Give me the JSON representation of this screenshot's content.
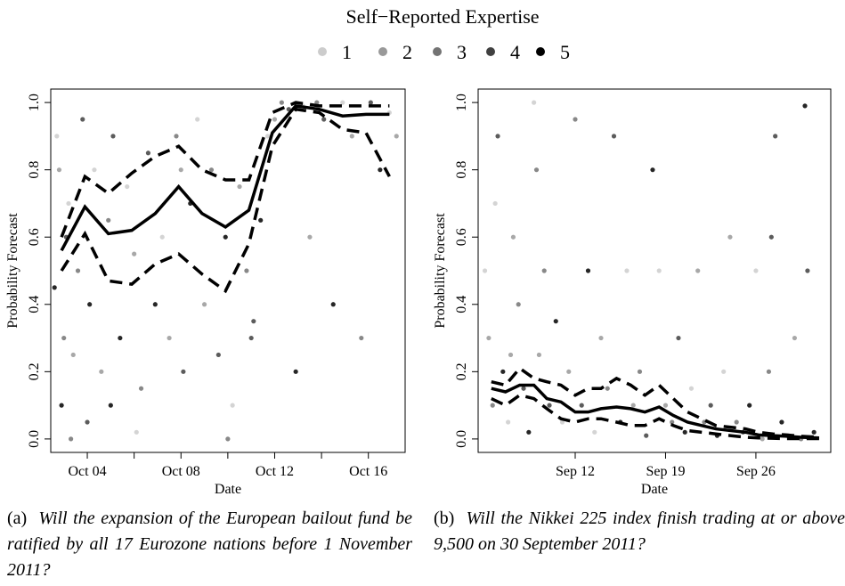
{
  "legend": {
    "title": "Self−Reported Expertise",
    "levels": [
      1,
      2,
      3,
      4,
      5
    ],
    "colors": [
      "#cccccc",
      "#999999",
      "#737373",
      "#404040",
      "#000000"
    ]
  },
  "chart_data": [
    {
      "type": "scatter-line",
      "label": "(a)",
      "caption": "Will the expansion of the European bailout fund be ratified by all 17 Eurozone nations before 1 November 2011?",
      "xlabel": "Date",
      "ylabel": "Probability Forecast",
      "xlim": [
        2.44,
        17.57
      ],
      "ylim": [
        -0.04,
        1.04
      ],
      "xticks": [
        {
          "value": 4,
          "label": "Oct 04"
        },
        {
          "value": 8,
          "label": "Oct 08"
        },
        {
          "value": 12,
          "label": "Oct 12"
        },
        {
          "value": 16,
          "label": "Oct 16"
        }
      ],
      "xminorticks": [
        6,
        10,
        14
      ],
      "yticks": [
        {
          "value": 0,
          "label": "0.0"
        },
        0.2,
        0.4,
        0.6,
        0.8,
        {
          "value": 1,
          "label": "1.0"
        }
      ],
      "points": {
        "x": [
          2.7,
          2.8,
          3.0,
          3.1,
          2.9,
          3.2,
          3.4,
          3.6,
          3.8,
          4.1,
          4.3,
          4.6,
          4.9,
          5.1,
          5.4,
          5.7,
          6.0,
          6.3,
          6.6,
          6.9,
          7.2,
          7.5,
          7.8,
          8.1,
          8.4,
          8.7,
          9.0,
          9.3,
          9.6,
          9.9,
          10.2,
          10.5,
          10.8,
          11.1,
          11.4,
          11.7,
          12.0,
          12.3,
          12.6,
          12.9,
          13.2,
          13.5,
          13.8,
          14.1,
          14.5,
          14.9,
          15.3,
          15.7,
          16.1,
          16.5,
          16.9,
          17.2,
          3.3,
          4.0,
          5.0,
          6.1,
          8.0,
          10.0,
          11.0,
          2.6
        ],
        "y": [
          0.9,
          0.8,
          0.3,
          0.6,
          0.1,
          0.7,
          0.25,
          0.5,
          0.95,
          0.4,
          0.8,
          0.2,
          0.65,
          0.9,
          0.3,
          0.75,
          0.55,
          0.15,
          0.85,
          0.4,
          0.6,
          0.3,
          0.9,
          0.2,
          0.7,
          0.95,
          0.4,
          0.8,
          0.25,
          0.6,
          0.1,
          0.75,
          0.5,
          0.35,
          0.65,
          0.9,
          0.95,
          1.0,
          0.98,
          0.2,
          0.99,
          0.6,
          1.0,
          0.95,
          0.4,
          1.0,
          0.9,
          0.3,
          1.0,
          0.8,
          0.97,
          0.9,
          0.0,
          0.05,
          0.1,
          0.02,
          0.8,
          0.0,
          0.3,
          0.45
        ],
        "expertise": [
          1,
          2,
          3,
          4,
          5,
          1,
          2,
          3,
          4,
          5,
          1,
          2,
          3,
          4,
          5,
          1,
          2,
          3,
          4,
          5,
          1,
          2,
          3,
          4,
          5,
          1,
          2,
          3,
          4,
          5,
          1,
          2,
          3,
          4,
          5,
          1,
          2,
          3,
          4,
          5,
          1,
          2,
          3,
          4,
          5,
          1,
          2,
          3,
          4,
          5,
          1,
          2,
          3,
          4,
          5,
          1,
          2,
          3,
          4,
          5
        ]
      },
      "line_x": [
        2.9,
        3.9,
        4.9,
        5.9,
        6.9,
        7.9,
        8.9,
        9.9,
        10.9,
        11.9,
        12.9,
        13.9,
        14.9,
        15.9,
        16.9
      ],
      "series": [
        {
          "style": "solid",
          "color": "#000000",
          "values": [
            0.56,
            0.69,
            0.61,
            0.62,
            0.67,
            0.75,
            0.67,
            0.63,
            0.68,
            0.91,
            0.99,
            0.98,
            0.96,
            0.965,
            0.965
          ]
        },
        {
          "style": "dashed",
          "color": "#000000",
          "values": [
            0.6,
            0.78,
            0.73,
            0.79,
            0.84,
            0.87,
            0.8,
            0.77,
            0.77,
            0.97,
            1.0,
            0.99,
            0.99,
            0.99,
            0.99
          ]
        },
        {
          "style": "dashed",
          "color": "#000000",
          "values": [
            0.5,
            0.61,
            0.47,
            0.46,
            0.52,
            0.55,
            0.49,
            0.44,
            0.58,
            0.87,
            0.98,
            0.97,
            0.92,
            0.91,
            0.78
          ]
        }
      ]
    },
    {
      "type": "scatter-line",
      "label": "(b)",
      "caption": "Will the Nikkei 225 index finish trading at or above 9,500 on 30 September 2011?",
      "xlabel": "Date",
      "ylabel": "Probability Forecast",
      "xlim": [
        4.48,
        31.8
      ],
      "ylim": [
        -0.04,
        1.04
      ],
      "xticks": [
        {
          "value": 12,
          "label": "Sep 12"
        },
        {
          "value": 19,
          "label": "Sep 19"
        },
        {
          "value": 26,
          "label": "Sep 26"
        }
      ],
      "xminorticks": [],
      "yticks": [
        {
          "value": 0,
          "label": "0.0"
        },
        0.2,
        0.4,
        0.6,
        0.8,
        {
          "value": 1,
          "label": "1.0"
        }
      ],
      "points": {
        "x": [
          5.0,
          5.3,
          5.6,
          6.0,
          6.4,
          6.8,
          7.2,
          7.6,
          8.0,
          8.4,
          8.8,
          9.2,
          9.6,
          10.0,
          10.5,
          11.0,
          11.5,
          12.0,
          12.5,
          13.0,
          13.5,
          14.0,
          14.5,
          15.0,
          15.5,
          16.0,
          16.5,
          17.0,
          17.5,
          18.0,
          18.5,
          19.0,
          19.5,
          20.0,
          20.5,
          21.0,
          21.5,
          22.0,
          22.5,
          23.0,
          23.5,
          24.0,
          24.5,
          25.0,
          25.5,
          26.0,
          26.5,
          27.0,
          27.5,
          28.0,
          28.5,
          29.0,
          29.5,
          30.0,
          30.5,
          5.8,
          7.0,
          9.0,
          27.2,
          29.8
        ],
        "y": [
          0.5,
          0.3,
          0.1,
          0.9,
          0.2,
          0.05,
          0.6,
          0.4,
          0.15,
          0.02,
          1.0,
          0.25,
          0.5,
          0.1,
          0.35,
          0.05,
          0.2,
          0.95,
          0.1,
          0.5,
          0.02,
          0.3,
          0.15,
          0.9,
          0.05,
          0.5,
          0.1,
          0.2,
          0.01,
          0.8,
          0.5,
          0.1,
          0.05,
          0.3,
          0.02,
          0.15,
          0.5,
          0.05,
          0.1,
          0.01,
          0.2,
          0.6,
          0.05,
          0.02,
          0.1,
          0.5,
          0.0,
          0.2,
          0.9,
          0.05,
          0.01,
          0.3,
          0.0,
          0.5,
          0.02,
          0.7,
          0.25,
          0.8,
          0.6,
          0.99
        ],
        "expertise": [
          1,
          2,
          3,
          4,
          5,
          1,
          2,
          3,
          4,
          5,
          1,
          2,
          3,
          4,
          5,
          1,
          2,
          3,
          4,
          5,
          1,
          2,
          3,
          4,
          5,
          1,
          2,
          3,
          4,
          5,
          1,
          2,
          3,
          4,
          5,
          1,
          2,
          3,
          4,
          5,
          1,
          2,
          3,
          4,
          5,
          1,
          2,
          3,
          4,
          5,
          1,
          2,
          3,
          4,
          5,
          1,
          2,
          3,
          4,
          5
        ]
      },
      "line_x": [
        5.5,
        6.6,
        7.7,
        8.8,
        9.8,
        10.9,
        12.0,
        13.0,
        14.0,
        15.2,
        16.3,
        17.4,
        18.5,
        19.6,
        20.7,
        21.8,
        22.9,
        24.0,
        25.2,
        26.2,
        27.3,
        28.4,
        29.5,
        30.9
      ],
      "series": [
        {
          "style": "solid",
          "color": "#000000",
          "values": [
            0.15,
            0.14,
            0.16,
            0.16,
            0.12,
            0.11,
            0.08,
            0.08,
            0.09,
            0.095,
            0.09,
            0.08,
            0.095,
            0.07,
            0.05,
            0.04,
            0.03,
            0.025,
            0.02,
            0.012,
            0.01,
            0.008,
            0.005,
            0.003
          ]
        },
        {
          "style": "dashed",
          "color": "#000000",
          "values": [
            0.17,
            0.16,
            0.21,
            0.18,
            0.17,
            0.16,
            0.13,
            0.15,
            0.15,
            0.18,
            0.16,
            0.13,
            0.16,
            0.12,
            0.08,
            0.06,
            0.04,
            0.035,
            0.03,
            0.02,
            0.015,
            0.012,
            0.008,
            0.005
          ]
        },
        {
          "style": "dashed",
          "color": "#000000",
          "values": [
            0.12,
            0.1,
            0.13,
            0.12,
            0.09,
            0.06,
            0.05,
            0.06,
            0.06,
            0.05,
            0.04,
            0.04,
            0.06,
            0.04,
            0.025,
            0.02,
            0.015,
            0.01,
            0.005,
            0.003,
            0.002,
            0.001,
            0.001,
            0.001
          ]
        }
      ]
    }
  ]
}
